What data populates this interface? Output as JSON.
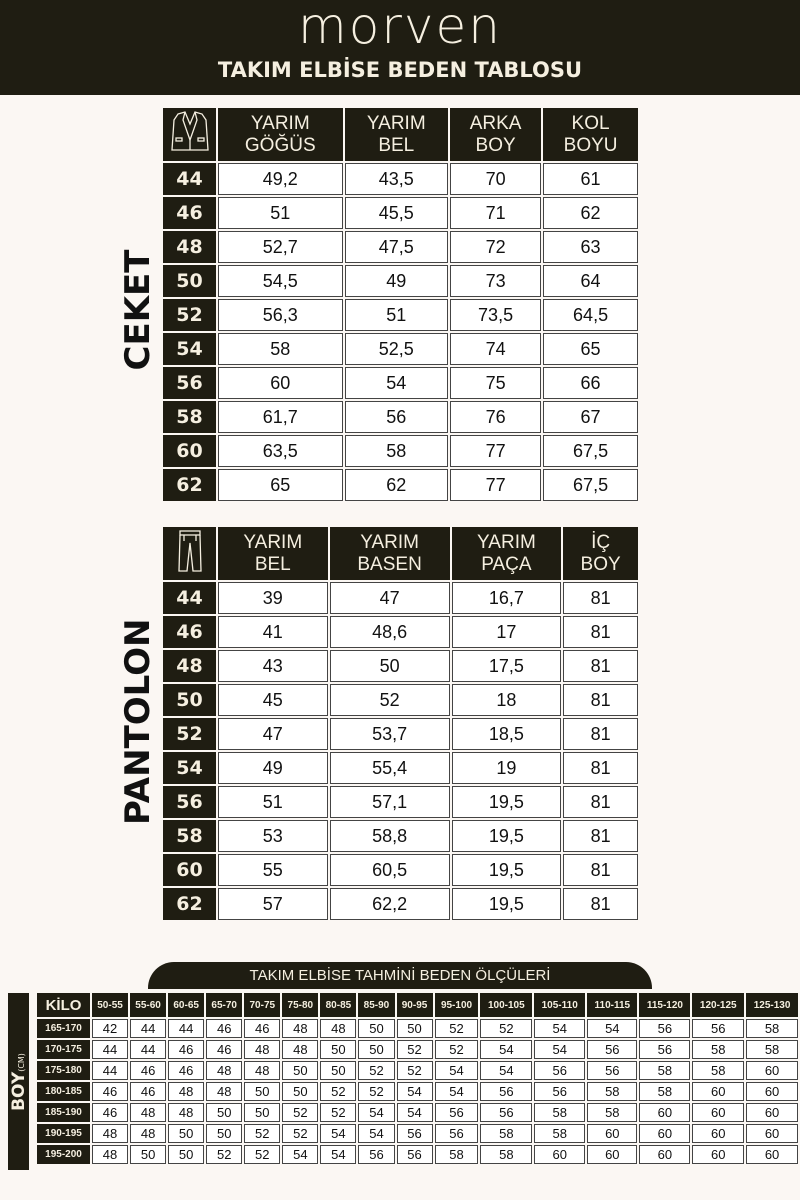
{
  "header": {
    "brand": "morven",
    "title": "TAKIM ELBİSE BEDEN TABLOSU"
  },
  "colors": {
    "dark": "#1f1d12",
    "text_light": "#f5efe0",
    "page_bg": "#fbf7f3"
  },
  "ceket": {
    "label": "CEKET",
    "icon": "jacket-icon",
    "columns": [
      "YARIM\nGÖĞÜS",
      "YARIM\nBEL",
      "ARKA\nBOY",
      "KOL\nBOYU"
    ],
    "rows": [
      [
        "44",
        "49,2",
        "43,5",
        "70",
        "61"
      ],
      [
        "46",
        "51",
        "45,5",
        "71",
        "62"
      ],
      [
        "48",
        "52,7",
        "47,5",
        "72",
        "63"
      ],
      [
        "50",
        "54,5",
        "49",
        "73",
        "64"
      ],
      [
        "52",
        "56,3",
        "51",
        "73,5",
        "64,5"
      ],
      [
        "54",
        "58",
        "52,5",
        "74",
        "65"
      ],
      [
        "56",
        "60",
        "54",
        "75",
        "66"
      ],
      [
        "58",
        "61,7",
        "56",
        "76",
        "67"
      ],
      [
        "60",
        "63,5",
        "58",
        "77",
        "67,5"
      ],
      [
        "62",
        "65",
        "62",
        "77",
        "67,5"
      ]
    ]
  },
  "pantolon": {
    "label": "PANTOLON",
    "icon": "trousers-icon",
    "columns": [
      "YARIM\nBEL",
      "YARIM\nBASEN",
      "YARIM\nPAÇA",
      "İÇ\nBOY"
    ],
    "rows": [
      [
        "44",
        "39",
        "47",
        "16,7",
        "81"
      ],
      [
        "46",
        "41",
        "48,6",
        "17",
        "81"
      ],
      [
        "48",
        "43",
        "50",
        "17,5",
        "81"
      ],
      [
        "50",
        "45",
        "52",
        "18",
        "81"
      ],
      [
        "52",
        "47",
        "53,7",
        "18,5",
        "81"
      ],
      [
        "54",
        "49",
        "55,4",
        "19",
        "81"
      ],
      [
        "56",
        "51",
        "57,1",
        "19,5",
        "81"
      ],
      [
        "58",
        "53",
        "58,8",
        "19,5",
        "81"
      ],
      [
        "60",
        "55",
        "60,5",
        "19,5",
        "81"
      ],
      [
        "62",
        "57",
        "62,2",
        "19,5",
        "81"
      ]
    ]
  },
  "estimate": {
    "title": "TAKIM ELBİSE TAHMİNİ BEDEN ÖLÇÜLERİ",
    "row_axis": "BOY",
    "row_axis_unit": "(CM)",
    "col_axis": "KİLO",
    "columns": [
      "50-55",
      "55-60",
      "60-65",
      "65-70",
      "70-75",
      "75-80",
      "80-85",
      "85-90",
      "90-95",
      "95-100",
      "100-105",
      "105-110",
      "110-115",
      "115-120",
      "120-125",
      "125-130"
    ],
    "rows": [
      {
        "label": "165-170",
        "values": [
          "42",
          "44",
          "44",
          "46",
          "46",
          "48",
          "48",
          "50",
          "50",
          "52",
          "52",
          "54",
          "54",
          "56",
          "56",
          "58"
        ]
      },
      {
        "label": "170-175",
        "values": [
          "44",
          "44",
          "46",
          "46",
          "48",
          "48",
          "50",
          "50",
          "52",
          "52",
          "54",
          "54",
          "56",
          "56",
          "58",
          "58"
        ]
      },
      {
        "label": "175-180",
        "values": [
          "44",
          "46",
          "46",
          "48",
          "48",
          "50",
          "50",
          "52",
          "52",
          "54",
          "54",
          "56",
          "56",
          "58",
          "58",
          "60"
        ]
      },
      {
        "label": "180-185",
        "values": [
          "46",
          "46",
          "48",
          "48",
          "50",
          "50",
          "52",
          "52",
          "54",
          "54",
          "56",
          "56",
          "58",
          "58",
          "60",
          "60"
        ]
      },
      {
        "label": "185-190",
        "values": [
          "46",
          "48",
          "48",
          "50",
          "50",
          "52",
          "52",
          "54",
          "54",
          "56",
          "56",
          "58",
          "58",
          "60",
          "60",
          "60"
        ]
      },
      {
        "label": "190-195",
        "values": [
          "48",
          "48",
          "50",
          "50",
          "52",
          "52",
          "54",
          "54",
          "56",
          "56",
          "58",
          "58",
          "60",
          "60",
          "60",
          "60"
        ]
      },
      {
        "label": "195-200",
        "values": [
          "48",
          "50",
          "50",
          "52",
          "52",
          "54",
          "54",
          "56",
          "56",
          "58",
          "58",
          "60",
          "60",
          "60",
          "60",
          "60"
        ]
      }
    ]
  }
}
